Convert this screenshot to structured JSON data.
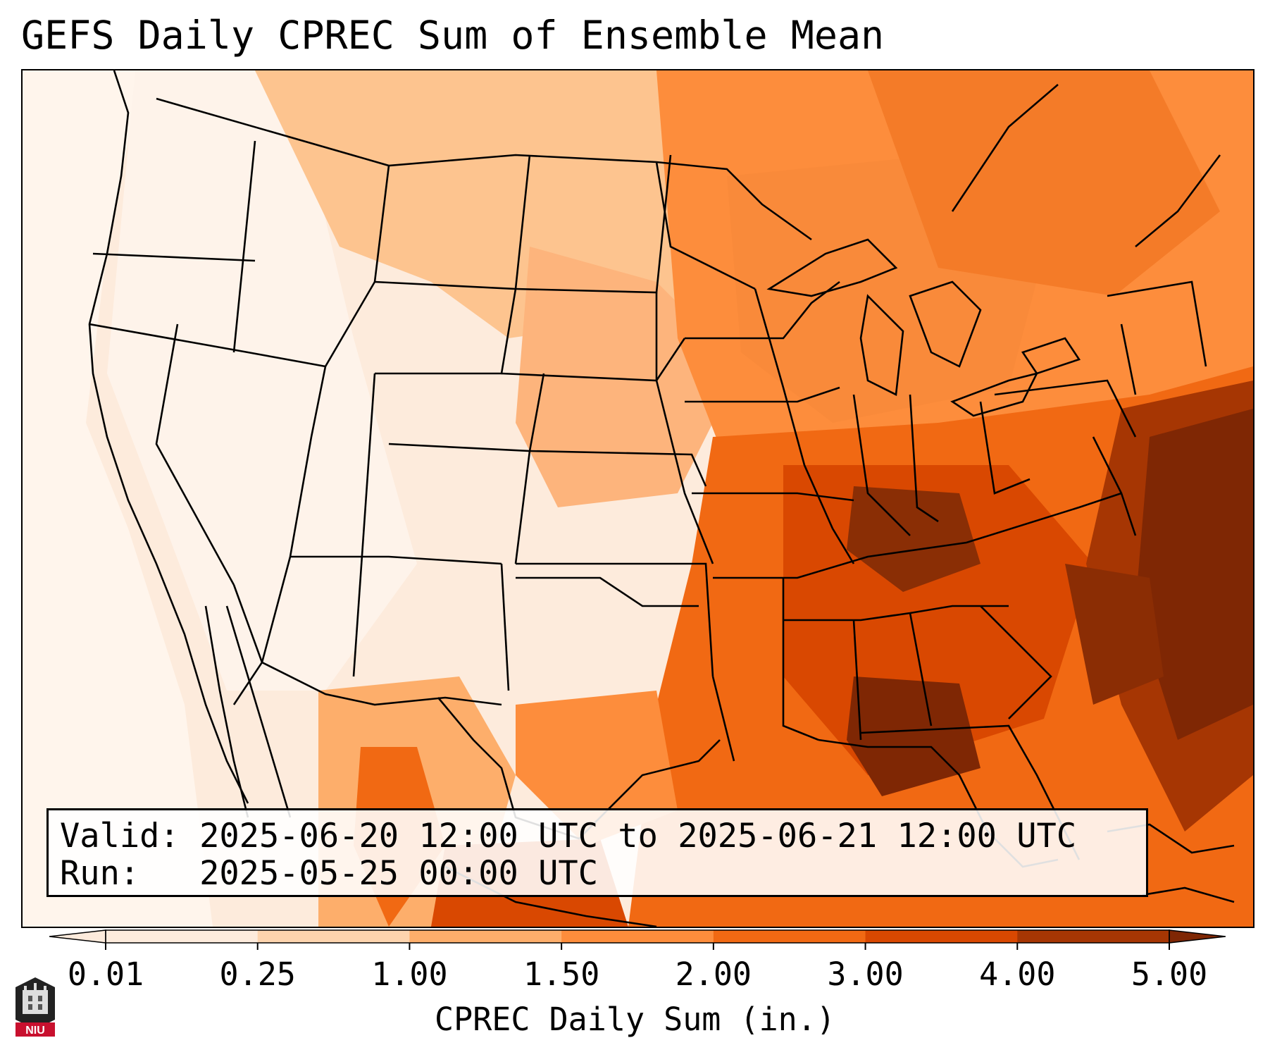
{
  "title": "GEFS Daily CPREC Sum of Ensemble Mean",
  "valid_line": "Valid: 2025-06-20 12:00 UTC to 2025-06-21 12:00 UTC",
  "run_line": "Run:   2025-05-25 00:00 UTC",
  "logo_text": "NIU",
  "legend": {
    "label": "CPREC Daily Sum (in.)",
    "ticks": [
      "0.01",
      "0.25",
      "1.00",
      "1.50",
      "2.00",
      "3.00",
      "4.00",
      "5.00"
    ],
    "colors": [
      "#fdebdc",
      "#fdd4ae",
      "#fdae6b",
      "#fd8d3c",
      "#f16913",
      "#d94801",
      "#a63603",
      "#7f2704"
    ],
    "extend": "both"
  },
  "map": {
    "region": "Continental United States",
    "ocean_color": "#fef1e6",
    "heaviest_area_color": "#7f2704"
  }
}
